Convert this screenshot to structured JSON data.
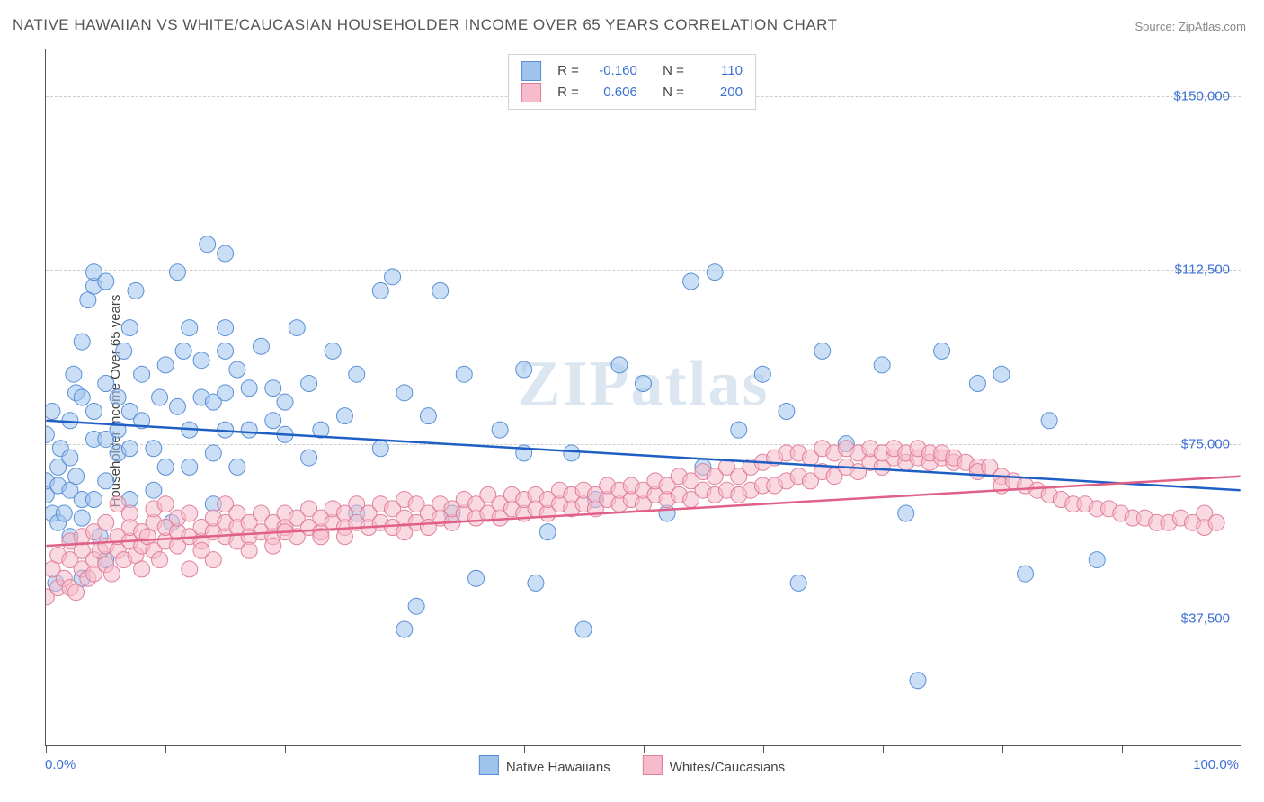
{
  "title": "NATIVE HAWAIIAN VS WHITE/CAUCASIAN HOUSEHOLDER INCOME OVER 65 YEARS CORRELATION CHART",
  "source_label": "Source: ",
  "source_name": "ZipAtlas.com",
  "ylabel": "Householder Income Over 65 years",
  "watermark": "ZIPatlas",
  "chart": {
    "type": "scatter",
    "background_color": "#ffffff",
    "grid_color": "#cccccc",
    "axis_color": "#555555",
    "tick_label_color": "#3b6fd6",
    "xlim": [
      0,
      100
    ],
    "ylim": [
      10000,
      160000
    ],
    "x_min_label": "0.0%",
    "x_max_label": "100.0%",
    "x_ticks": [
      0,
      10,
      20,
      30,
      40,
      50,
      60,
      70,
      80,
      90,
      100
    ],
    "y_gridlines": [
      {
        "value": 37500,
        "label": "$37,500"
      },
      {
        "value": 75000,
        "label": "$75,000"
      },
      {
        "value": 112500,
        "label": "$112,500"
      },
      {
        "value": 150000,
        "label": "$150,000"
      }
    ],
    "marker_radius": 9,
    "marker_opacity": 0.55,
    "marker_stroke_width": 1,
    "line_width": 2.5,
    "label_fontsize": 15,
    "title_fontsize": 17
  },
  "series": [
    {
      "id": "native-hawaiians",
      "label": "Native Hawaiians",
      "fill_color": "#9ec4ee",
      "stroke_color": "#5a8fd6",
      "line_color": "#1f5fc4",
      "R": "-0.160",
      "N": "110",
      "trend": {
        "x1": 0,
        "y1": 80000,
        "x2": 100,
        "y2": 65000
      },
      "points": [
        [
          0,
          64000
        ],
        [
          0,
          67000
        ],
        [
          0,
          77000
        ],
        [
          0.5,
          60000
        ],
        [
          0.5,
          82000
        ],
        [
          0.8,
          45000
        ],
        [
          1,
          58000
        ],
        [
          1,
          66000
        ],
        [
          1,
          70000
        ],
        [
          1.2,
          74000
        ],
        [
          1.5,
          60000
        ],
        [
          2,
          55000
        ],
        [
          2,
          65000
        ],
        [
          2,
          72000
        ],
        [
          2,
          80000
        ],
        [
          2.3,
          90000
        ],
        [
          2.5,
          86000
        ],
        [
          2.5,
          68000
        ],
        [
          3,
          46000
        ],
        [
          3,
          59000
        ],
        [
          3,
          63000
        ],
        [
          3,
          85000
        ],
        [
          3,
          97000
        ],
        [
          3.5,
          106000
        ],
        [
          4,
          63000
        ],
        [
          4,
          76000
        ],
        [
          4,
          82000
        ],
        [
          4,
          109000
        ],
        [
          4,
          112000
        ],
        [
          4.5,
          55000
        ],
        [
          5,
          50000
        ],
        [
          5,
          67000
        ],
        [
          5,
          76000
        ],
        [
          5,
          88000
        ],
        [
          5,
          110000
        ],
        [
          6,
          78000
        ],
        [
          6,
          85000
        ],
        [
          6,
          73000
        ],
        [
          6.5,
          95000
        ],
        [
          7,
          63000
        ],
        [
          7,
          74000
        ],
        [
          7,
          82000
        ],
        [
          7,
          100000
        ],
        [
          7.5,
          108000
        ],
        [
          8,
          80000
        ],
        [
          8,
          90000
        ],
        [
          9,
          65000
        ],
        [
          9,
          74000
        ],
        [
          9.5,
          85000
        ],
        [
          10,
          70000
        ],
        [
          10,
          92000
        ],
        [
          10.5,
          58000
        ],
        [
          11,
          112000
        ],
        [
          11,
          83000
        ],
        [
          11.5,
          95000
        ],
        [
          12,
          100000
        ],
        [
          12,
          70000
        ],
        [
          12,
          78000
        ],
        [
          13,
          85000
        ],
        [
          13,
          93000
        ],
        [
          13.5,
          118000
        ],
        [
          14,
          62000
        ],
        [
          14,
          73000
        ],
        [
          14,
          84000
        ],
        [
          15,
          95000
        ],
        [
          15,
          78000
        ],
        [
          15,
          86000
        ],
        [
          15,
          100000
        ],
        [
          15,
          116000
        ],
        [
          16,
          70000
        ],
        [
          16,
          91000
        ],
        [
          17,
          87000
        ],
        [
          17,
          78000
        ],
        [
          18,
          96000
        ],
        [
          19,
          80000
        ],
        [
          19,
          87000
        ],
        [
          20,
          84000
        ],
        [
          20,
          77000
        ],
        [
          21,
          100000
        ],
        [
          22,
          72000
        ],
        [
          22,
          88000
        ],
        [
          23,
          78000
        ],
        [
          24,
          95000
        ],
        [
          25,
          81000
        ],
        [
          26,
          60000
        ],
        [
          26,
          90000
        ],
        [
          28,
          108000
        ],
        [
          28,
          74000
        ],
        [
          29,
          111000
        ],
        [
          30,
          86000
        ],
        [
          30,
          35000
        ],
        [
          31,
          40000
        ],
        [
          32,
          81000
        ],
        [
          33,
          108000
        ],
        [
          34,
          60000
        ],
        [
          35,
          90000
        ],
        [
          36,
          46000
        ],
        [
          38,
          78000
        ],
        [
          40,
          73000
        ],
        [
          40,
          91000
        ],
        [
          41,
          45000
        ],
        [
          42,
          56000
        ],
        [
          44,
          73000
        ],
        [
          45,
          35000
        ],
        [
          46,
          63000
        ],
        [
          48,
          92000
        ],
        [
          50,
          88000
        ],
        [
          52,
          60000
        ],
        [
          54,
          110000
        ],
        [
          55,
          70000
        ],
        [
          56,
          112000
        ],
        [
          58,
          78000
        ],
        [
          60,
          90000
        ],
        [
          62,
          82000
        ],
        [
          63,
          45000
        ],
        [
          65,
          95000
        ],
        [
          67,
          75000
        ],
        [
          70,
          92000
        ],
        [
          72,
          60000
        ],
        [
          73,
          24000
        ],
        [
          75,
          95000
        ],
        [
          78,
          88000
        ],
        [
          80,
          90000
        ],
        [
          82,
          47000
        ],
        [
          84,
          80000
        ],
        [
          88,
          50000
        ]
      ]
    },
    {
      "id": "whites-caucasians",
      "label": "Whites/Caucasians",
      "fill_color": "#f6bccb",
      "stroke_color": "#e07f9a",
      "line_color": "#e06088",
      "R": "0.606",
      "N": "200",
      "trend": {
        "x1": 0,
        "y1": 53000,
        "x2": 100,
        "y2": 68000
      },
      "points": [
        [
          0,
          42000
        ],
        [
          0.5,
          48000
        ],
        [
          1,
          44000
        ],
        [
          1,
          51000
        ],
        [
          1.5,
          46000
        ],
        [
          2,
          50000
        ],
        [
          2,
          54000
        ],
        [
          2,
          44000
        ],
        [
          2.5,
          43000
        ],
        [
          3,
          48000
        ],
        [
          3,
          52000
        ],
        [
          3,
          55000
        ],
        [
          3.5,
          46000
        ],
        [
          4,
          50000
        ],
        [
          4,
          56000
        ],
        [
          4,
          47000
        ],
        [
          4.5,
          52000
        ],
        [
          5,
          49000
        ],
        [
          5,
          53000
        ],
        [
          5,
          58000
        ],
        [
          5.5,
          47000
        ],
        [
          6,
          52000
        ],
        [
          6,
          55000
        ],
        [
          6,
          62000
        ],
        [
          6.5,
          50000
        ],
        [
          7,
          54000
        ],
        [
          7,
          57000
        ],
        [
          7,
          60000
        ],
        [
          7.5,
          51000
        ],
        [
          8,
          53000
        ],
        [
          8,
          56000
        ],
        [
          8,
          48000
        ],
        [
          8.5,
          55000
        ],
        [
          9,
          52000
        ],
        [
          9,
          58000
        ],
        [
          9,
          61000
        ],
        [
          9.5,
          50000
        ],
        [
          10,
          54000
        ],
        [
          10,
          57000
        ],
        [
          10,
          62000
        ],
        [
          11,
          53000
        ],
        [
          11,
          56000
        ],
        [
          11,
          59000
        ],
        [
          12,
          55000
        ],
        [
          12,
          48000
        ],
        [
          12,
          60000
        ],
        [
          13,
          54000
        ],
        [
          13,
          57000
        ],
        [
          13,
          52000
        ],
        [
          14,
          56000
        ],
        [
          14,
          59000
        ],
        [
          14,
          50000
        ],
        [
          15,
          55000
        ],
        [
          15,
          58000
        ],
        [
          15,
          62000
        ],
        [
          16,
          54000
        ],
        [
          16,
          57000
        ],
        [
          16,
          60000
        ],
        [
          17,
          55000
        ],
        [
          17,
          58000
        ],
        [
          17,
          52000
        ],
        [
          18,
          56000
        ],
        [
          18,
          60000
        ],
        [
          19,
          55000
        ],
        [
          19,
          58000
        ],
        [
          19,
          53000
        ],
        [
          20,
          57000
        ],
        [
          20,
          60000
        ],
        [
          20,
          56000
        ],
        [
          21,
          55000
        ],
        [
          21,
          59000
        ],
        [
          22,
          57000
        ],
        [
          22,
          61000
        ],
        [
          23,
          56000
        ],
        [
          23,
          59000
        ],
        [
          23,
          55000
        ],
        [
          24,
          58000
        ],
        [
          24,
          61000
        ],
        [
          25,
          57000
        ],
        [
          25,
          60000
        ],
        [
          25,
          55000
        ],
        [
          26,
          58000
        ],
        [
          26,
          62000
        ],
        [
          27,
          57000
        ],
        [
          27,
          60000
        ],
        [
          28,
          58000
        ],
        [
          28,
          62000
        ],
        [
          29,
          57000
        ],
        [
          29,
          61000
        ],
        [
          30,
          59000
        ],
        [
          30,
          63000
        ],
        [
          30,
          56000
        ],
        [
          31,
          58000
        ],
        [
          31,
          62000
        ],
        [
          32,
          60000
        ],
        [
          32,
          57000
        ],
        [
          33,
          59000
        ],
        [
          33,
          62000
        ],
        [
          34,
          58000
        ],
        [
          34,
          61000
        ],
        [
          35,
          60000
        ],
        [
          35,
          63000
        ],
        [
          36,
          59000
        ],
        [
          36,
          62000
        ],
        [
          37,
          60000
        ],
        [
          37,
          64000
        ],
        [
          38,
          59000
        ],
        [
          38,
          62000
        ],
        [
          39,
          61000
        ],
        [
          39,
          64000
        ],
        [
          40,
          60000
        ],
        [
          40,
          63000
        ],
        [
          41,
          61000
        ],
        [
          41,
          64000
        ],
        [
          42,
          60000
        ],
        [
          42,
          63000
        ],
        [
          43,
          62000
        ],
        [
          43,
          65000
        ],
        [
          44,
          61000
        ],
        [
          44,
          64000
        ],
        [
          45,
          62000
        ],
        [
          45,
          65000
        ],
        [
          46,
          61000
        ],
        [
          46,
          64000
        ],
        [
          47,
          63000
        ],
        [
          47,
          66000
        ],
        [
          48,
          62000
        ],
        [
          48,
          65000
        ],
        [
          49,
          63000
        ],
        [
          49,
          66000
        ],
        [
          50,
          62000
        ],
        [
          50,
          65000
        ],
        [
          51,
          64000
        ],
        [
          51,
          67000
        ],
        [
          52,
          63000
        ],
        [
          52,
          66000
        ],
        [
          53,
          64000
        ],
        [
          53,
          68000
        ],
        [
          54,
          63000
        ],
        [
          54,
          67000
        ],
        [
          55,
          65000
        ],
        [
          55,
          69000
        ],
        [
          56,
          64000
        ],
        [
          56,
          68000
        ],
        [
          57,
          65000
        ],
        [
          57,
          70000
        ],
        [
          58,
          64000
        ],
        [
          58,
          68000
        ],
        [
          59,
          65000
        ],
        [
          59,
          70000
        ],
        [
          60,
          66000
        ],
        [
          60,
          71000
        ],
        [
          61,
          66000
        ],
        [
          61,
          72000
        ],
        [
          62,
          67000
        ],
        [
          62,
          73000
        ],
        [
          63,
          68000
        ],
        [
          63,
          73000
        ],
        [
          64,
          67000
        ],
        [
          64,
          72000
        ],
        [
          65,
          69000
        ],
        [
          65,
          74000
        ],
        [
          66,
          68000
        ],
        [
          66,
          73000
        ],
        [
          67,
          70000
        ],
        [
          67,
          74000
        ],
        [
          68,
          69000
        ],
        [
          68,
          73000
        ],
        [
          69,
          71000
        ],
        [
          69,
          74000
        ],
        [
          70,
          70000
        ],
        [
          70,
          73000
        ],
        [
          71,
          72000
        ],
        [
          71,
          74000
        ],
        [
          72,
          71000
        ],
        [
          72,
          73000
        ],
        [
          73,
          72000
        ],
        [
          73,
          74000
        ],
        [
          74,
          71000
        ],
        [
          74,
          73000
        ],
        [
          75,
          72000
        ],
        [
          75,
          73000
        ],
        [
          76,
          71000
        ],
        [
          76,
          72000
        ],
        [
          77,
          71000
        ],
        [
          78,
          70000
        ],
        [
          78,
          69000
        ],
        [
          79,
          70000
        ],
        [
          80,
          68000
        ],
        [
          80,
          66000
        ],
        [
          81,
          67000
        ],
        [
          82,
          66000
        ],
        [
          83,
          65000
        ],
        [
          84,
          64000
        ],
        [
          85,
          63000
        ],
        [
          86,
          62000
        ],
        [
          87,
          62000
        ],
        [
          88,
          61000
        ],
        [
          89,
          61000
        ],
        [
          90,
          60000
        ],
        [
          91,
          59000
        ],
        [
          92,
          59000
        ],
        [
          93,
          58000
        ],
        [
          94,
          58000
        ],
        [
          95,
          59000
        ],
        [
          96,
          58000
        ],
        [
          97,
          57000
        ],
        [
          97,
          60000
        ],
        [
          98,
          58000
        ]
      ]
    }
  ],
  "top_legend": {
    "r_label": "R =",
    "n_label": "N ="
  },
  "bottom_legend_labels": [
    "Native Hawaiians",
    "Whites/Caucasians"
  ]
}
